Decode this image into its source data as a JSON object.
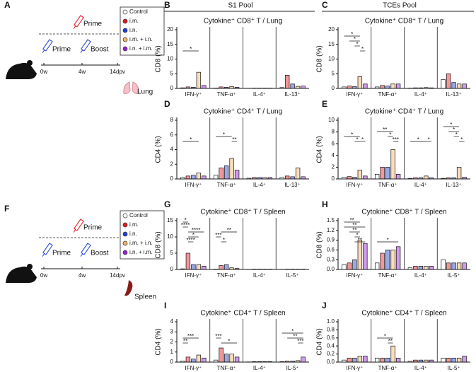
{
  "pools": [
    "S1 Pool",
    "TCEs Pool"
  ],
  "schematics": [
    {
      "panel": "A",
      "steps": [
        "Prime",
        "Prime",
        "Boost"
      ],
      "timeline": [
        "0w",
        "4w",
        "14dpv"
      ],
      "organ": "Lung"
    },
    {
      "panel": "F",
      "steps": [
        "Prime",
        "Prime",
        "Boost"
      ],
      "timeline": [
        "0w",
        "4w",
        "14dpv"
      ],
      "organ": "Spleen"
    }
  ],
  "chart_data": [
    {
      "type": "bar",
      "panel": "B",
      "title": "Cytokine⁺ CD8⁺ T / Lung",
      "ylabel": "CD8 (%)",
      "categories": [
        "IFN-γ⁺",
        "TNF-α⁺",
        "IL-4⁺",
        "IL-13⁺"
      ],
      "series": [
        {
          "name": "Control",
          "color": "#ffffff",
          "values": [
            0.2,
            0.1,
            0.05,
            0.3
          ]
        },
        {
          "name": "i.m.",
          "color": "#e0191f",
          "values": [
            0.5,
            0.5,
            0.1,
            4.5
          ]
        },
        {
          "name": "i.n.",
          "color": "#1f3fd1",
          "values": [
            0.4,
            0.4,
            0.1,
            1.5
          ]
        },
        {
          "name": "i.m. + i.n.",
          "color": "#f2b36b",
          "values": [
            5.5,
            0.6,
            0.1,
            0.7
          ]
        },
        {
          "name": "i.n. + i.m.",
          "color": "#9b1fd6",
          "values": [
            1.0,
            0.4,
            0.1,
            0.8
          ]
        }
      ],
      "ylim": [
        0,
        20
      ],
      "yticks": [
        0,
        5,
        10,
        15,
        20
      ],
      "annotations": [
        "*"
      ]
    },
    {
      "type": "bar",
      "panel": "C",
      "title": "Cytokine⁺ CD8⁺ T / Lung",
      "ylabel": "CD8 (%)",
      "categories": [
        "IFN-γ⁺",
        "TNF-α⁺",
        "IL-4⁺",
        "IL-13⁺"
      ],
      "series": [
        {
          "name": "Control",
          "color": "#ffffff",
          "values": [
            0.5,
            0.5,
            0.1,
            3
          ]
        },
        {
          "name": "i.m.",
          "color": "#e0191f",
          "values": [
            0.8,
            1,
            0.2,
            5
          ]
        },
        {
          "name": "i.n.",
          "color": "#1f3fd1",
          "values": [
            0.6,
            0.8,
            0.2,
            2
          ]
        },
        {
          "name": "i.m. + i.n.",
          "color": "#f2b36b",
          "values": [
            4,
            1.5,
            0.3,
            1.5
          ]
        },
        {
          "name": "i.n. + i.m.",
          "color": "#9b1fd6",
          "values": [
            1.5,
            1.5,
            0.2,
            1.5
          ]
        }
      ],
      "ylim": [
        0,
        20
      ],
      "yticks": [
        0,
        5,
        10,
        15,
        20
      ],
      "annotations": [
        "*",
        "*",
        "*",
        "*"
      ]
    },
    {
      "type": "bar",
      "panel": "D",
      "title": "Cytokine⁺ CD4⁺ T / Lung",
      "ylabel": "CD4 (%)",
      "categories": [
        "IFN-γ⁺",
        "TNF-α⁺",
        "IL-4⁺",
        "IL-13⁺"
      ],
      "series": [
        {
          "name": "Control",
          "color": "#ffffff",
          "values": [
            0.2,
            0.5,
            0.1,
            0.2
          ]
        },
        {
          "name": "i.m.",
          "color": "#e0191f",
          "values": [
            0.4,
            1.5,
            0.2,
            0.4
          ]
        },
        {
          "name": "i.n.",
          "color": "#1f3fd1",
          "values": [
            0.5,
            1.8,
            0.2,
            0.3
          ]
        },
        {
          "name": "i.m. + i.n.",
          "color": "#f2b36b",
          "values": [
            0.8,
            2.8,
            0.2,
            1.5
          ]
        },
        {
          "name": "i.n. + i.m.",
          "color": "#9b1fd6",
          "values": [
            0.4,
            1.2,
            0.2,
            0.3
          ]
        }
      ],
      "ylim": [
        0,
        8
      ],
      "yticks": [
        0,
        2,
        4,
        6,
        8
      ],
      "annotations": [
        "*",
        "*",
        "**"
      ]
    },
    {
      "type": "bar",
      "panel": "E",
      "title": "Cytokine⁺ CD4⁺ T / Lung",
      "ylabel": "CD4 (%)",
      "categories": [
        "IFN-γ⁺",
        "TNF-α⁺",
        "IL-4⁺",
        "IL-13⁺"
      ],
      "series": [
        {
          "name": "Control",
          "color": "#ffffff",
          "values": [
            0.3,
            0.8,
            0.1,
            0.1
          ]
        },
        {
          "name": "i.m.",
          "color": "#e0191f",
          "values": [
            0.4,
            2,
            0.2,
            0.2
          ]
        },
        {
          "name": "i.n.",
          "color": "#1f3fd1",
          "values": [
            0.3,
            2,
            0.2,
            0.2
          ]
        },
        {
          "name": "i.m. + i.n.",
          "color": "#f2b36b",
          "values": [
            1.5,
            5,
            0.5,
            2
          ]
        },
        {
          "name": "i.n. + i.m.",
          "color": "#9b1fd6",
          "values": [
            0.5,
            0.8,
            0.2,
            0.3
          ]
        }
      ],
      "ylim": [
        0,
        10
      ],
      "yticks": [
        0,
        2,
        4,
        6,
        8,
        10
      ],
      "annotations": [
        "*",
        "*",
        "*",
        "**",
        "*",
        "***",
        "*",
        "*",
        "*",
        "*",
        "*",
        "*"
      ]
    },
    {
      "type": "bar",
      "panel": "G",
      "title": "Cytokine⁺ CD8⁺ T / Spleen",
      "ylabel": "CD8 (%)",
      "categories": [
        "IFN-γ⁺",
        "TNF-α⁺",
        "IL-4⁺",
        "IL-5⁺"
      ],
      "series": [
        {
          "name": "Control",
          "color": "#ffffff",
          "values": [
            0.2,
            0.1,
            0.05,
            0.05
          ]
        },
        {
          "name": "i.m.",
          "color": "#e0191f",
          "values": [
            5,
            1.2,
            0.1,
            0.1
          ]
        },
        {
          "name": "i.n.",
          "color": "#1f3fd1",
          "values": [
            1.5,
            1.5,
            0.1,
            0.1
          ]
        },
        {
          "name": "i.m. + i.n.",
          "color": "#f2b36b",
          "values": [
            1.5,
            0.5,
            0.1,
            0.1
          ]
        },
        {
          "name": "i.n. + i.m.",
          "color": "#9b1fd6",
          "values": [
            1,
            0.3,
            0.1,
            0.1
          ]
        }
      ],
      "ylim": [
        0,
        15
      ],
      "yticks": [
        0,
        5,
        10,
        15
      ],
      "annotations": [
        "*",
        "****",
        "****",
        "*",
        "****",
        "***",
        "*",
        "**"
      ]
    },
    {
      "type": "bar",
      "panel": "H",
      "title": "Cytokine⁺ CD8⁺ T / Spleen",
      "ylabel": "CD8 (%)",
      "categories": [
        "IFN-γ⁺",
        "TNF-α⁺",
        "IL-4⁺",
        "IL-5⁺"
      ],
      "series": [
        {
          "name": "Control",
          "color": "#ffffff",
          "values": [
            0.15,
            0.2,
            0.05,
            0.3
          ]
        },
        {
          "name": "i.m.",
          "color": "#e0191f",
          "values": [
            0.2,
            0.5,
            0.1,
            0.2
          ]
        },
        {
          "name": "i.n.",
          "color": "#1f3fd1",
          "values": [
            0.3,
            0.6,
            0.1,
            0.2
          ]
        },
        {
          "name": "i.m. + i.n.",
          "color": "#f2b36b",
          "values": [
            0.9,
            0.6,
            0.1,
            0.2
          ]
        },
        {
          "name": "i.n. + i.m.",
          "color": "#9b1fd6",
          "values": [
            0.8,
            0.7,
            0.1,
            0.2
          ]
        }
      ],
      "ylim": [
        0,
        1.5
      ],
      "yticks": [
        {
          "value": 0,
          "label": "0.0"
        },
        0.3,
        0.6,
        0.9,
        1.2,
        1.5
      ],
      "annotations": [
        "**",
        "**",
        "**",
        "*",
        "**",
        "*"
      ]
    },
    {
      "type": "bar",
      "panel": "I",
      "title": "Cytokine⁺ CD4⁺ T / Spleen",
      "ylabel": "CD4 (%)",
      "categories": [
        "IFN-γ⁺",
        "TNF-α⁺",
        "IL-4⁺",
        "IL-5⁺"
      ],
      "series": [
        {
          "name": "Control",
          "color": "#ffffff",
          "values": [
            0.1,
            0.2,
            0.02,
            0.05
          ]
        },
        {
          "name": "i.m.",
          "color": "#e0191f",
          "values": [
            0.5,
            1.4,
            0.05,
            0.1
          ]
        },
        {
          "name": "i.n.",
          "color": "#1f3fd1",
          "values": [
            0.3,
            0.8,
            0.05,
            0.1
          ]
        },
        {
          "name": "i.m. + i.n.",
          "color": "#f2b36b",
          "values": [
            0.7,
            0.8,
            0.05,
            0.15
          ]
        },
        {
          "name": "i.n. + i.m.",
          "color": "#9b1fd6",
          "values": [
            0.4,
            0.5,
            0.05,
            0.5
          ]
        }
      ],
      "ylim": [
        0,
        4
      ],
      "yticks": [
        0,
        1,
        2,
        3,
        4
      ],
      "annotations": [
        "**",
        "***",
        "***",
        "*",
        "*",
        "**",
        "***"
      ]
    },
    {
      "type": "bar",
      "panel": "J",
      "title": "Cytokine⁺ CD4⁺ T / Spleen",
      "ylabel": "CD4 (%)",
      "categories": [
        "IFN-γ⁺",
        "TNF-α⁺",
        "IL-4⁺",
        "IL-5⁺"
      ],
      "series": [
        {
          "name": "Control",
          "color": "#ffffff",
          "values": [
            0.05,
            0.1,
            0.02,
            0.1
          ]
        },
        {
          "name": "i.m.",
          "color": "#e0191f",
          "values": [
            0.1,
            0.1,
            0.05,
            0.1
          ]
        },
        {
          "name": "i.n.",
          "color": "#1f3fd1",
          "values": [
            0.1,
            0.1,
            0.05,
            0.1
          ]
        },
        {
          "name": "i.m. + i.n.",
          "color": "#f2b36b",
          "values": [
            0.15,
            0.4,
            0.05,
            0.1
          ]
        },
        {
          "name": "i.n. + i.m.",
          "color": "#9b1fd6",
          "values": [
            0.15,
            0.1,
            0.05,
            0.15
          ]
        }
      ],
      "ylim": [
        0,
        1
      ],
      "yticks": [
        {
          "value": 0,
          "label": "0.0"
        },
        0.2,
        0.4,
        0.6,
        0.8,
        {
          "value": 1,
          "label": "1.0"
        }
      ],
      "annotations": [
        "*",
        "**"
      ]
    }
  ]
}
